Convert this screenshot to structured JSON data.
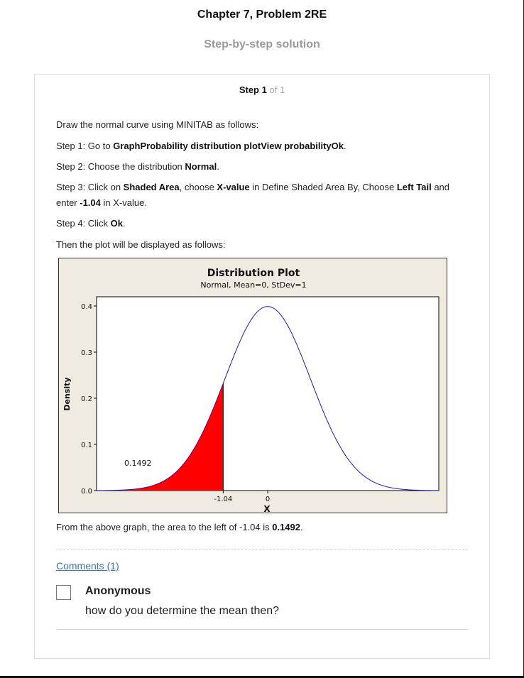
{
  "header": {
    "title": "Chapter 7, Problem 2RE",
    "subtitle": "Step-by-step solution"
  },
  "step": {
    "label": "Step",
    "current": "1",
    "of_total": "of 1"
  },
  "intro": "Draw the normal curve using MINITAB as follows:",
  "instructions": {
    "s1_prefix": "Step 1: Go to ",
    "s1_bold": "GraphProbability distribution plotView probabilityOk",
    "s1_suffix": ".",
    "s2_prefix": "Step 2: Choose the distribution ",
    "s2_bold": "Normal",
    "s2_suffix": ".",
    "s3_a": "Step 3: Click on ",
    "s3_b": "Shaded Area",
    "s3_c": ", choose ",
    "s3_d": "X-value",
    "s3_e": " in Define Shaded Area By, Choose ",
    "s3_f": "Left Tail",
    "s3_g": " and enter ",
    "s3_h": "-1.04",
    "s3_i": " in X-value.",
    "s4_prefix": "Step 4: Click ",
    "s4_bold": "Ok",
    "s4_suffix": "."
  },
  "then_text": "Then the plot will be displayed as follows:",
  "chart_data": {
    "type": "area",
    "title": "Distribution Plot",
    "subtitle": "Normal, Mean=0, StDev=1",
    "xlabel": "X",
    "ylabel": "Density",
    "distribution": {
      "family": "normal",
      "mean": 0,
      "stdev": 1
    },
    "xlim": [
      -4,
      4
    ],
    "ylim": [
      0,
      0.42
    ],
    "yticks": [
      0.0,
      0.1,
      0.2,
      0.3,
      0.4
    ],
    "ytick_labels": [
      "0.0",
      "0.1",
      "0.2",
      "0.3",
      "0.4"
    ],
    "xticks": [
      -1.04,
      0
    ],
    "xtick_labels": [
      "-1.04",
      "0"
    ],
    "shaded": {
      "region": "left tail",
      "upper": -1.04,
      "area": 0.1492,
      "label": "0.1492"
    },
    "grid": false,
    "colors": {
      "curve": "#1a1ab4",
      "shade": "#ff0000",
      "panel": "#efebe1",
      "plot_bg": "#ffffff"
    }
  },
  "conclusion": {
    "prefix": "From the above graph, the area to the left of -1.04 is ",
    "value": "0.1492",
    "suffix": "."
  },
  "comments": {
    "link_label": "Comments (1)",
    "items": [
      {
        "author": "Anonymous",
        "text": "how do you determine the mean then?"
      }
    ]
  }
}
